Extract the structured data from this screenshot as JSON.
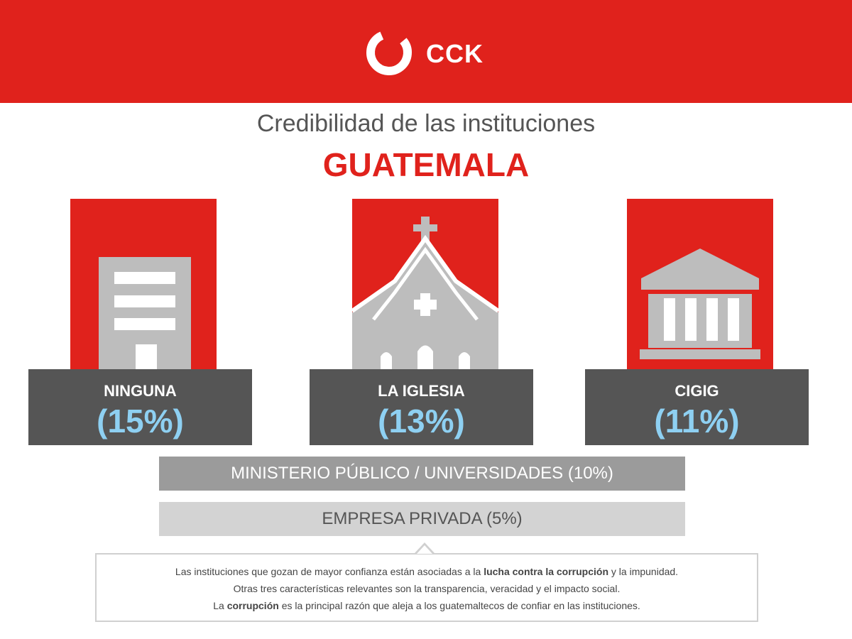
{
  "header": {
    "logo_icon": "cck-ring-logo",
    "logo_text": "CCK",
    "brand_color": "#e0221c"
  },
  "title": "Credibilidad de las instituciones",
  "subtitle": "GUATEMALA",
  "institutions": [
    {
      "name": "NINGUNA",
      "percent": "(15%)",
      "icon": "office-building-icon"
    },
    {
      "name": "LA IGLESIA",
      "percent": "(13%)",
      "icon": "church-icon"
    },
    {
      "name": "CIGIG",
      "percent": "(11%)",
      "icon": "courthouse-icon"
    }
  ],
  "bars": [
    {
      "label": "MINISTERIO PÚBLICO / UNIVERSIDADES (10%)"
    },
    {
      "label": "EMPRESA PRIVADA (5%)"
    }
  ],
  "note": {
    "line1_pre": "Las instituciones que gozan de mayor confianza están asociadas a la ",
    "line1_bold": "lucha contra la corrupción",
    "line1_post": " y la impunidad.",
    "line2": "Otras tres características relevantes son la transparencia, veracidad y el impacto social.",
    "line3_pre": "La ",
    "line3_bold": "corrupción",
    "line3_post": " es la principal razón que aleja a los guatemaltecos de confiar en las instituciones."
  },
  "colors": {
    "red": "#e0221c",
    "dark_gray": "#555555",
    "percent_blue": "#8ed0f2",
    "icon_gray": "#bdbdbd"
  }
}
